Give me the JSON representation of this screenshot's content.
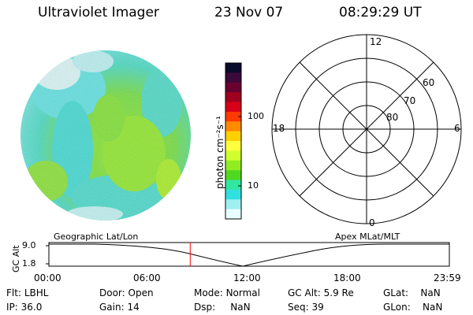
{
  "header": {
    "instrument": "Ultraviolet Imager",
    "date": "23 Nov 07",
    "time": "08:29:29 UT"
  },
  "colorbar": {
    "unit_label": "photon cm⁻²s⁻¹",
    "ticks": [
      "100",
      "10"
    ],
    "colors": [
      "#0a0a2a",
      "#3a0a3a",
      "#6a0030",
      "#a00020",
      "#d80018",
      "#ff3a00",
      "#ff8a00",
      "#ffd000",
      "#ffff40",
      "#d0ff30",
      "#90ee20",
      "#50d820",
      "#30e8a0",
      "#30e0e0",
      "#a0f0f0",
      "#e8ffff"
    ]
  },
  "polar_plot": {
    "mlt_labels": {
      "top": "12",
      "left": "18",
      "right": "6",
      "bottom": "0"
    },
    "lat_labels": [
      "60",
      "70",
      "80"
    ]
  },
  "timeline": {
    "left_title": "Geographic Lat/Lon",
    "right_title": "Apex MLat/MLT",
    "y_axis_label": "GC Alt",
    "y_ticks": [
      "9.0",
      "1.8"
    ],
    "x_ticks": [
      "00:00",
      "06:00",
      "12:00",
      "18:00",
      "23:59"
    ],
    "current_time_fraction": 0.353,
    "line_color": "#ff0000"
  },
  "status": {
    "row1": [
      {
        "key": "Flt:",
        "value": "LBHL"
      },
      {
        "key": "Door:",
        "value": "Open"
      },
      {
        "key": "Mode:",
        "value": "Normal"
      },
      {
        "key": "GC Alt:",
        "value": "5.9 Re"
      },
      {
        "key": "GLat:",
        "value": "NaN"
      }
    ],
    "row2": [
      {
        "key": "IP:",
        "value": "36.0"
      },
      {
        "key": "Gain:",
        "value": "14"
      },
      {
        "key": "Dsp:",
        "value": "NaN"
      },
      {
        "key": "Seq:",
        "value": "39"
      },
      {
        "key": "GLon:",
        "value": "NaN"
      }
    ]
  }
}
